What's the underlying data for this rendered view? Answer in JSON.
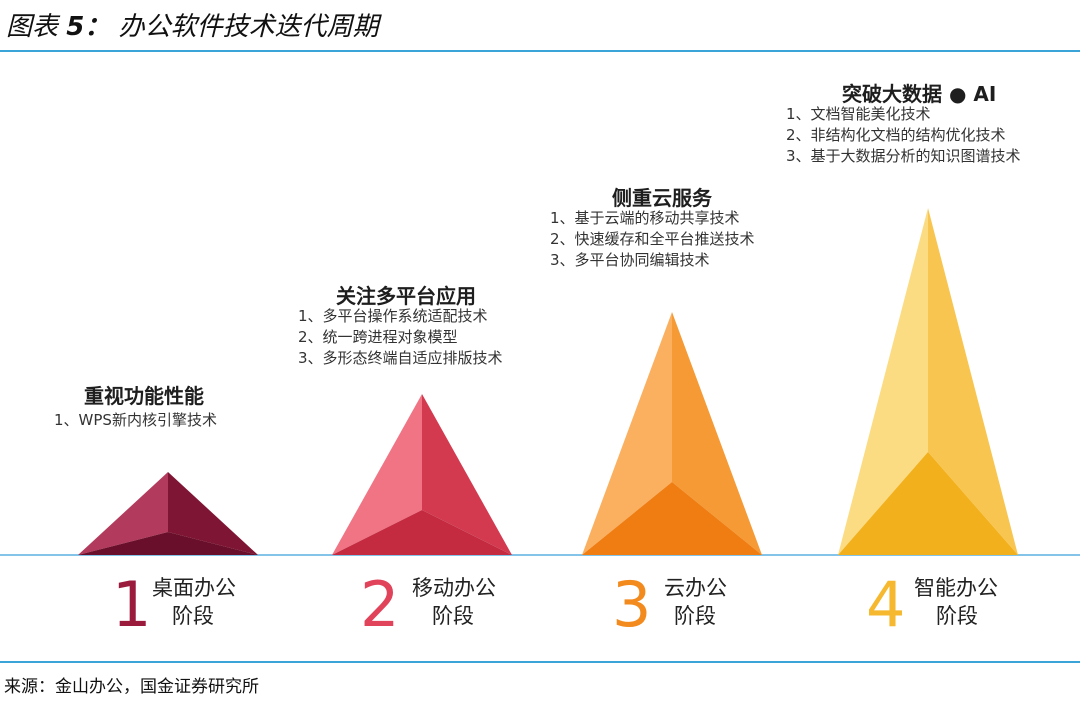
{
  "figure": {
    "title_prefix": "图表",
    "title_number": "5：",
    "title_text": "办公软件技术迭代周期",
    "source": "来源：金山办公，国金证券研究所"
  },
  "stages": [
    {
      "number": "1",
      "name_line1": "桌面办公",
      "name_line2": "阶段",
      "heading": "重视功能性能",
      "items": [
        "1、WPS新内核引擎技术"
      ],
      "colors": {
        "number": "#9b1b3d",
        "light": "#b23a5c",
        "dark": "#7e1534",
        "base": "#6a0f2b"
      }
    },
    {
      "number": "2",
      "name_line1": "移动办公",
      "name_line2": "阶段",
      "heading": "关注多平台应用",
      "items": [
        "1、多平台操作系统适配技术",
        "2、统一跨进程对象模型",
        "3、多形态终端自适应排版技术"
      ],
      "colors": {
        "number": "#e0435a",
        "light": "#f07484",
        "dark": "#d33a50",
        "base": "#c42a40"
      }
    },
    {
      "number": "3",
      "name_line1": "云办公",
      "name_line2": "阶段",
      "heading": "侧重云服务",
      "items": [
        "1、基于云端的移动共享技术",
        "2、快速缓存和全平台推送技术",
        "3、多平台协同编辑技术"
      ],
      "colors": {
        "number": "#f28a1e",
        "light": "#fbb060",
        "dark": "#f59a35",
        "base": "#ef7d12"
      }
    },
    {
      "number": "4",
      "name_line1": "智能办公",
      "name_line2": "阶段",
      "heading": "突破大数据 ● AI",
      "items": [
        "1、文档智能美化技术",
        "2、非结构化文档的结构优化技术",
        "3、基于大数据分析的知识图谱技术"
      ],
      "colors": {
        "number": "#f5b82e",
        "light": "#fcdc82",
        "dark": "#f8c650",
        "base": "#f2b01c"
      }
    }
  ]
}
